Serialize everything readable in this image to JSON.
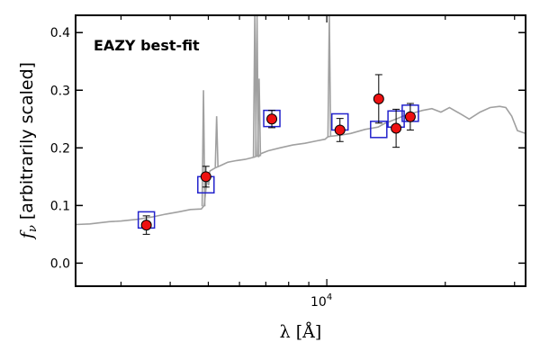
{
  "chart_data": {
    "type": "scatter",
    "xscale": "log",
    "xlabel": "λ [Å]",
    "ylabel": "f_ν [arbitrarily scaled]",
    "xlim": [
      2300,
      32000
    ],
    "ylim": [
      -0.04,
      0.43
    ],
    "grid": false,
    "x_tick_labels": [
      {
        "x": 10000,
        "label": "10^4"
      }
    ],
    "y_ticks": [
      0.0,
      0.1,
      0.2,
      0.3,
      0.4
    ],
    "y_tick_labels": [
      "0.0",
      "0.1",
      "0.2",
      "0.3",
      "0.4"
    ],
    "annotation": {
      "text": "EAZY best-fit",
      "color": "#ff0000"
    },
    "colors": {
      "model": "#a0a0a0",
      "observed_fill": "#ee1111",
      "model_box": "#2222cc",
      "error_bar": "#000000"
    },
    "model_spectrum": {
      "x": [
        2300,
        2500,
        2800,
        3000,
        3300,
        3600,
        3900,
        4200,
        4500,
        4800,
        4880,
        4950,
        5050,
        5200,
        5400,
        5600,
        5900,
        6200,
        6550,
        6650,
        6720,
        6800,
        7100,
        7600,
        8200,
        8800,
        9400,
        9900,
        10050,
        10200,
        10800,
        11500,
        12500,
        13000,
        13500,
        14000,
        14500,
        15000,
        15600,
        16500,
        17500,
        18500,
        19500,
        20500,
        22000,
        23000,
        24500,
        26000,
        27500,
        28500,
        29500,
        30500,
        32000
      ],
      "y": [
        0.067,
        0.068,
        0.072,
        0.073,
        0.076,
        0.08,
        0.085,
        0.089,
        0.093,
        0.094,
        0.1,
        0.14,
        0.16,
        0.165,
        0.17,
        0.175,
        0.178,
        0.18,
        0.184,
        0.186,
        0.185,
        0.19,
        0.195,
        0.2,
        0.205,
        0.208,
        0.212,
        0.215,
        0.219,
        0.22,
        0.222,
        0.225,
        0.232,
        0.234,
        0.236,
        0.242,
        0.246,
        0.25,
        0.255,
        0.26,
        0.265,
        0.268,
        0.262,
        0.27,
        0.258,
        0.25,
        0.262,
        0.27,
        0.272,
        0.27,
        0.255,
        0.23,
        0.225
      ]
    },
    "emission_lines": [
      {
        "x": 4861,
        "peak": 0.3
      },
      {
        "x": 5007,
        "peak": 0.135
      },
      {
        "x": 5250,
        "peak": 0.255
      },
      {
        "x": 6563,
        "peak": 0.43
      },
      {
        "x": 6650,
        "peak": 0.43
      },
      {
        "x": 6730,
        "peak": 0.32
      },
      {
        "x": 10150,
        "peak": 0.43
      }
    ],
    "observed": {
      "x": [
        3480,
        4930,
        7250,
        10800,
        13550,
        15000,
        16300
      ],
      "y": [
        0.066,
        0.15,
        0.25,
        0.231,
        0.285,
        0.234,
        0.254
      ],
      "err": [
        0.016,
        0.018,
        0.015,
        0.02,
        0.042,
        0.033,
        0.023
      ]
    },
    "model_photometry": {
      "x": [
        3480,
        4930,
        7250,
        10800,
        13550,
        15000,
        16300
      ],
      "y": [
        0.075,
        0.136,
        0.251,
        0.245,
        0.232,
        0.25,
        0.26
      ]
    }
  }
}
